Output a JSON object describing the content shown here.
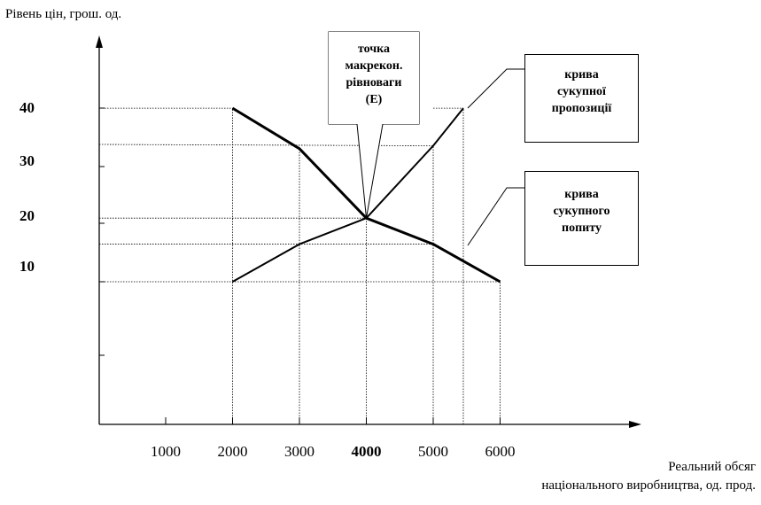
{
  "chart_data": {
    "type": "line",
    "ylabel": "Рівень цін, грош. од.",
    "xlabel_line1": "Реальний обсяг",
    "xlabel_line2": "національного виробництва, од. прод.",
    "x_ticks": [
      {
        "value": 1000,
        "label": "1000",
        "bold": false
      },
      {
        "value": 2000,
        "label": "2000",
        "bold": false
      },
      {
        "value": 3000,
        "label": "3000",
        "bold": false
      },
      {
        "value": 4000,
        "label": "4000",
        "bold": true
      },
      {
        "value": 5000,
        "label": "5000",
        "bold": false
      },
      {
        "value": 6000,
        "label": "6000",
        "bold": false
      }
    ],
    "y_ticks": [
      {
        "value": 10,
        "label": "10"
      },
      {
        "value": 20,
        "label": "20"
      },
      {
        "value": 30,
        "label": "30"
      },
      {
        "value": 40,
        "label": "40"
      }
    ],
    "series": [
      {
        "name": "крива сукупної пропозиції",
        "x": [
          2000,
          3000,
          4000,
          5000,
          5450
        ],
        "y": [
          10,
          16.5,
          21,
          33.5,
          40
        ]
      },
      {
        "name": "крива сукупного попиту",
        "x": [
          2000,
          3000,
          4000,
          5000,
          6000
        ],
        "y": [
          40,
          33,
          21,
          16.5,
          10
        ]
      }
    ],
    "equilibrium": {
      "x": 4000,
      "y": 21
    },
    "annotations": {
      "equilibrium": [
        "точка",
        "макрекон.",
        "рівноваги",
        "(E)"
      ],
      "aggregate_supply": [
        "крива",
        "сукупної",
        "пропозиції"
      ],
      "aggregate_demand": [
        "крива",
        "сукупного",
        "попиту"
      ]
    }
  }
}
